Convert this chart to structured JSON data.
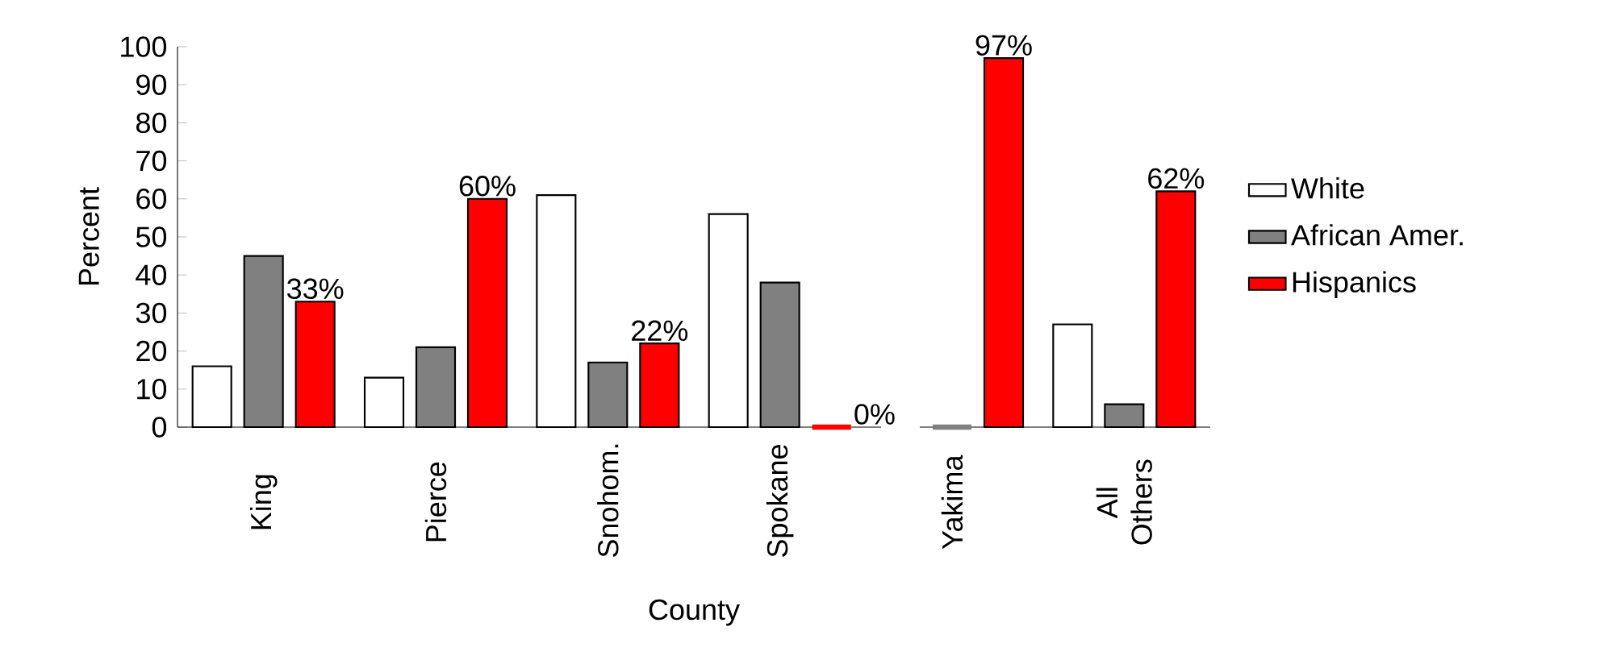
{
  "chart_data": {
    "type": "bar",
    "xlabel": "County",
    "ylabel": "Percent",
    "categories": [
      "King",
      "Pierce",
      "Snohom.",
      "Spokane",
      "Yakima",
      "All Others"
    ],
    "series": [
      {
        "name": "White",
        "color": "#ffffff",
        "values": [
          16,
          13,
          61,
          56,
          0,
          27
        ]
      },
      {
        "name": "African Amer.",
        "color": "#808080",
        "values": [
          45,
          21,
          17,
          38,
          0,
          6
        ]
      },
      {
        "name": "Hispanics",
        "color": "#ff0000",
        "values": [
          33,
          60,
          22,
          0,
          97,
          62
        ],
        "value_labels": [
          "33%",
          "60%",
          "22%",
          "0%",
          "97%",
          "62%"
        ]
      }
    ],
    "ylim": [
      0,
      100
    ],
    "yticks": [
      0,
      10,
      20,
      30,
      40,
      50,
      60,
      70,
      80,
      90,
      100
    ],
    "legend": "right"
  }
}
